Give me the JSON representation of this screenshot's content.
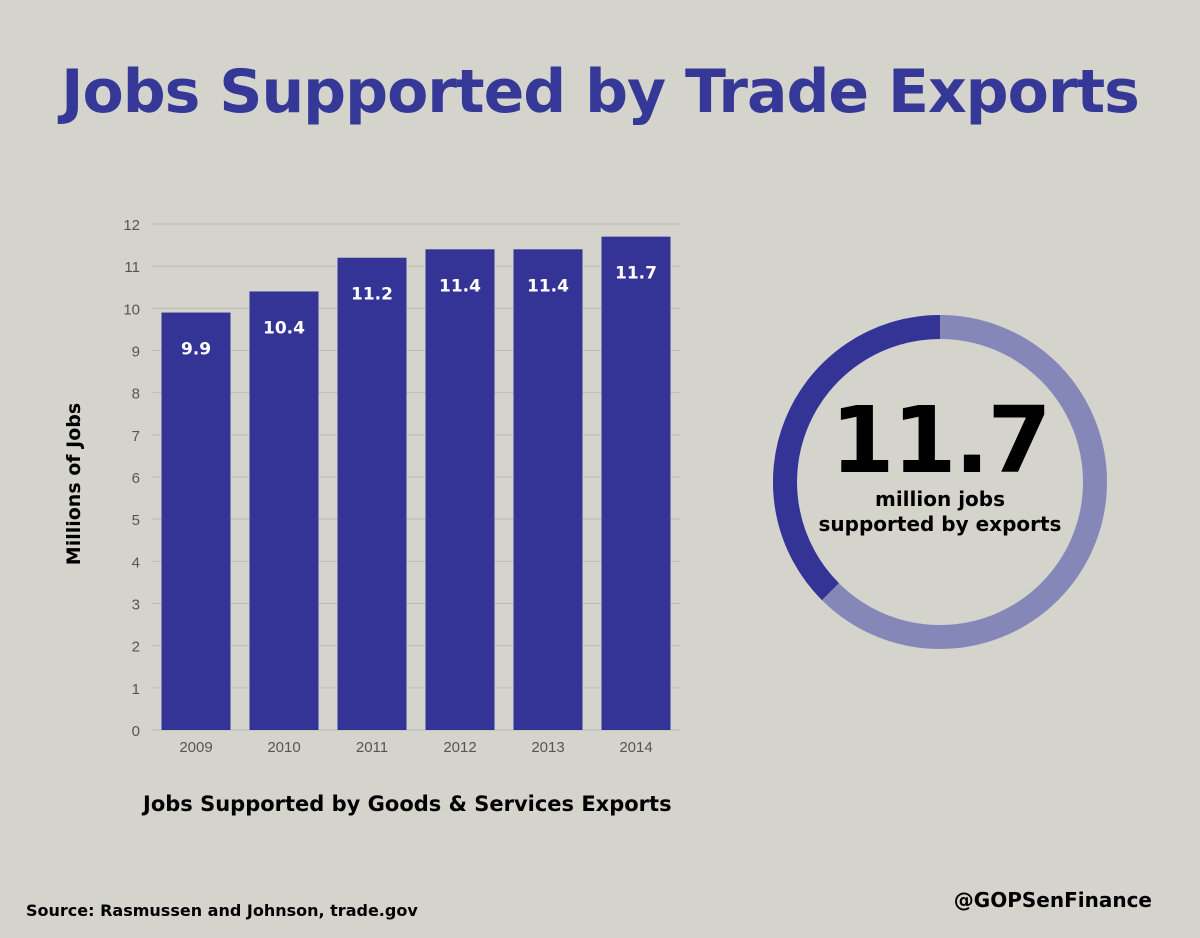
{
  "title": "Jobs Supported by Trade Exports",
  "colors": {
    "background": "#d4d4cd",
    "title": "#353896",
    "bar": "#343496",
    "bar_label": "#ffffff",
    "grid": "#bcbcb6",
    "tick_label": "#555555",
    "donut_filled": "#343496",
    "donut_remaining": "#8587b8"
  },
  "chart_data": [
    {
      "type": "bar",
      "title": "",
      "xlabel": "",
      "ylabel": "Millions of Jobs",
      "categories": [
        "2009",
        "2010",
        "2011",
        "2012",
        "2013",
        "2014"
      ],
      "values": [
        9.9,
        10.4,
        11.2,
        11.4,
        11.4,
        11.7
      ],
      "data_labels": [
        "9.9",
        "10.4",
        "11.2",
        "11.4",
        "11.4",
        "11.7"
      ],
      "y_ticks": [
        0,
        1,
        2,
        3,
        4,
        5,
        6,
        7,
        8,
        9,
        10,
        11,
        12
      ],
      "ylim": [
        0,
        12
      ],
      "grid": true,
      "legend": "none"
    },
    {
      "type": "pie",
      "style": "donut",
      "title": "",
      "center_value": "11.7",
      "center_label_lines": [
        "million jobs",
        "supported by exports"
      ],
      "filled_fraction": 0.375
    }
  ],
  "caption": "Jobs Supported by Goods & Services Exports",
  "source": "Source: Rasmussen and Johnson, trade.gov",
  "handle": "@GOPSenFinance"
}
